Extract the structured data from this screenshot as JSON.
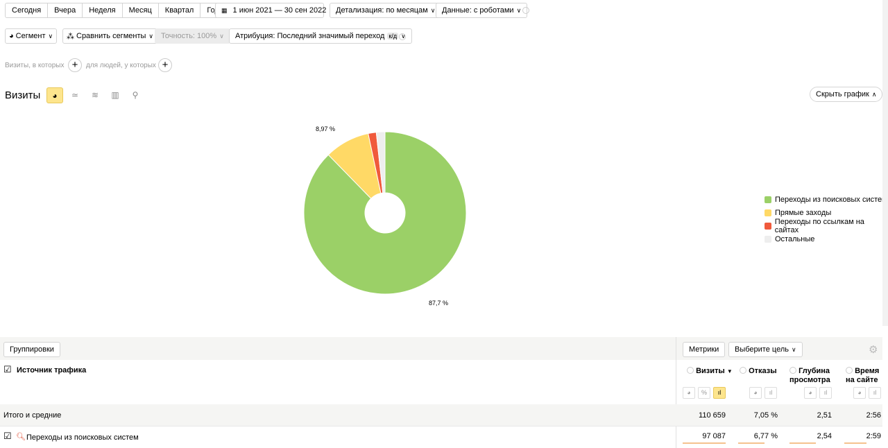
{
  "periods": [
    "Сегодня",
    "Вчера",
    "Неделя",
    "Месяц",
    "Квартал",
    "Год"
  ],
  "date_range": "1 июн 2021 — 30 сен 2022",
  "detail": "Детализация: по месяцам",
  "data_mode": "Данные: с роботами",
  "segment": "Сегмент",
  "compare": "Сравнить сегменты",
  "accuracy": "Точность: 100%",
  "attribution": "Атрибуция: Последний значимый переход",
  "attribution_badge": "к/д",
  "filter_visits": "Визиты, в которых",
  "filter_people": "для людей, у которых",
  "chart_title": "Визиты",
  "hide_chart": "Скрыть график",
  "chart_data": {
    "type": "pie",
    "donut": true,
    "categories": [
      "Переходы из поисковых систем",
      "Прямые заходы",
      "Переходы по ссылкам на сайтах",
      "Остальные"
    ],
    "values": [
      87.7,
      8.97,
      1.6,
      1.73
    ],
    "labels": [
      "87,7 %",
      "8,97 %"
    ],
    "colors": [
      "#9bd067",
      "#ffd966",
      "#f05a3c",
      "#eeeeee"
    ],
    "legend": "right"
  },
  "table": {
    "groupings": "Группировки",
    "metrics": "Метрики",
    "goal": "Выберите цель",
    "dimension": "Источник трафика",
    "columns": [
      "Визиты",
      "Отказы",
      "Глубина просмотра",
      "Время на сайте"
    ],
    "sort_arrow": "▼",
    "percent_label": "%",
    "totals_label": "Итого и средние",
    "totals": [
      "110 659",
      "7,05 %",
      "2,51",
      "2:56"
    ],
    "rows": [
      {
        "label": "Переходы из поисковых систем",
        "values": [
          "97 087",
          "6,77 %",
          "2,54",
          "2:59"
        ]
      }
    ]
  }
}
